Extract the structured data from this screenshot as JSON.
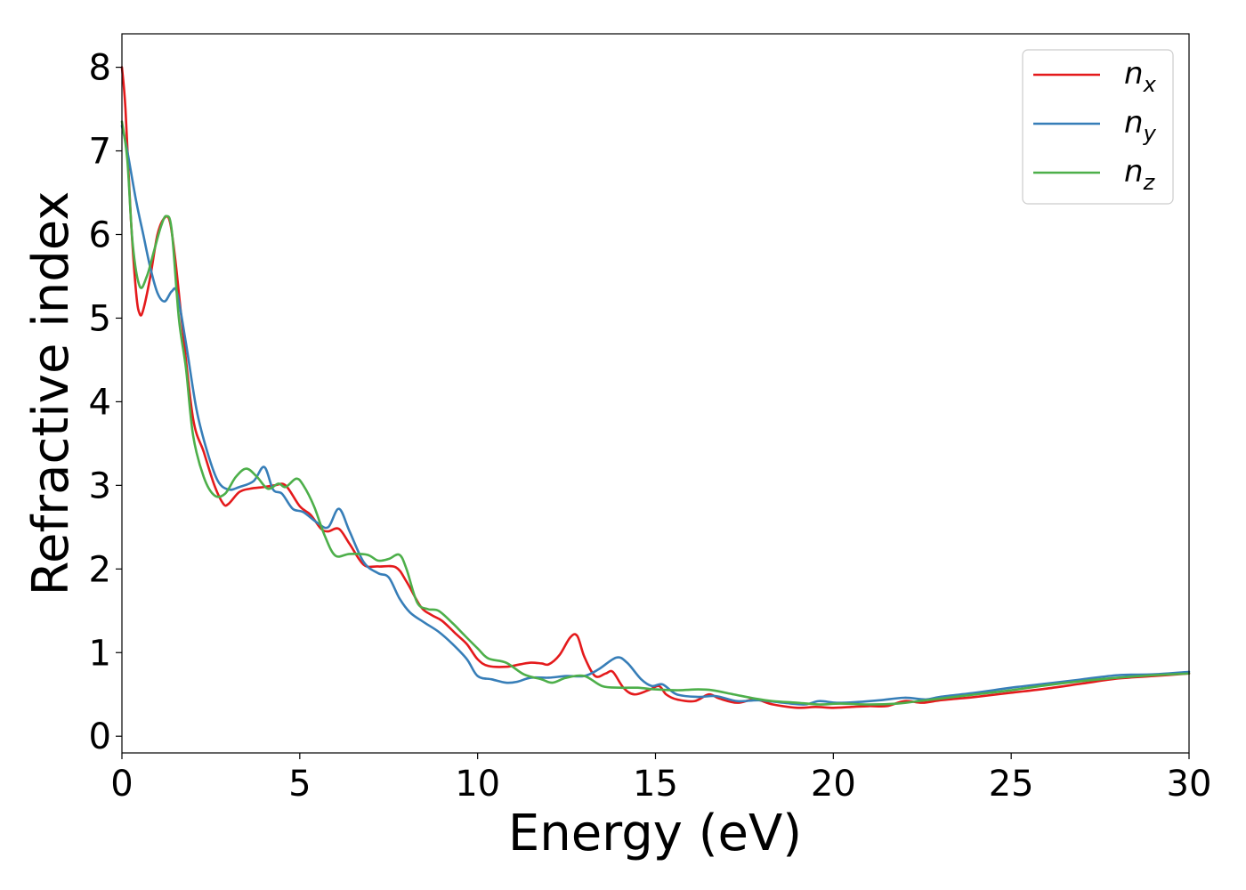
{
  "chart_data": {
    "type": "line",
    "xlabel": "Energy (eV)",
    "ylabel": "Refractive index",
    "xlim": [
      0,
      30
    ],
    "ylim": [
      -0.2,
      8.4
    ],
    "xticks": [
      0,
      5,
      10,
      15,
      20,
      25,
      30
    ],
    "yticks": [
      0,
      1,
      2,
      3,
      4,
      5,
      6,
      7,
      8
    ],
    "grid": false,
    "legend_position": "top-right",
    "series": [
      {
        "name": "n_x",
        "label_base": "n",
        "label_sub": "x",
        "color": "#e41a1c",
        "points": [
          [
            0,
            8.0
          ],
          [
            0.1,
            7.5
          ],
          [
            0.25,
            6.2
          ],
          [
            0.4,
            5.3
          ],
          [
            0.5,
            5.05
          ],
          [
            0.6,
            5.1
          ],
          [
            0.8,
            5.5
          ],
          [
            1.0,
            6.0
          ],
          [
            1.2,
            6.2
          ],
          [
            1.35,
            6.15
          ],
          [
            1.5,
            5.7
          ],
          [
            1.7,
            4.9
          ],
          [
            2.0,
            3.8
          ],
          [
            2.3,
            3.4
          ],
          [
            2.6,
            3.0
          ],
          [
            2.85,
            2.78
          ],
          [
            3.0,
            2.78
          ],
          [
            3.3,
            2.92
          ],
          [
            3.6,
            2.96
          ],
          [
            4.0,
            2.98
          ],
          [
            4.3,
            3.0
          ],
          [
            4.6,
            3.0
          ],
          [
            5.0,
            2.75
          ],
          [
            5.3,
            2.65
          ],
          [
            5.6,
            2.48
          ],
          [
            5.8,
            2.45
          ],
          [
            6.1,
            2.48
          ],
          [
            6.4,
            2.3
          ],
          [
            6.8,
            2.05
          ],
          [
            7.2,
            2.03
          ],
          [
            7.7,
            2.02
          ],
          [
            8.0,
            1.85
          ],
          [
            8.4,
            1.55
          ],
          [
            8.7,
            1.45
          ],
          [
            9.0,
            1.38
          ],
          [
            9.4,
            1.22
          ],
          [
            9.7,
            1.1
          ],
          [
            10.0,
            0.92
          ],
          [
            10.3,
            0.84
          ],
          [
            10.8,
            0.83
          ],
          [
            11.2,
            0.86
          ],
          [
            11.5,
            0.88
          ],
          [
            11.8,
            0.87
          ],
          [
            12.0,
            0.86
          ],
          [
            12.3,
            0.97
          ],
          [
            12.6,
            1.18
          ],
          [
            12.8,
            1.2
          ],
          [
            13.0,
            0.95
          ],
          [
            13.3,
            0.72
          ],
          [
            13.6,
            0.75
          ],
          [
            13.8,
            0.77
          ],
          [
            14.1,
            0.58
          ],
          [
            14.4,
            0.5
          ],
          [
            14.8,
            0.55
          ],
          [
            15.1,
            0.6
          ],
          [
            15.3,
            0.5
          ],
          [
            15.6,
            0.44
          ],
          [
            16.1,
            0.42
          ],
          [
            16.5,
            0.5
          ],
          [
            16.8,
            0.45
          ],
          [
            17.3,
            0.4
          ],
          [
            17.8,
            0.44
          ],
          [
            18.3,
            0.38
          ],
          [
            19.0,
            0.34
          ],
          [
            19.5,
            0.35
          ],
          [
            20.0,
            0.34
          ],
          [
            20.5,
            0.35
          ],
          [
            21.0,
            0.36
          ],
          [
            21.5,
            0.36
          ],
          [
            22.0,
            0.42
          ],
          [
            22.5,
            0.4
          ],
          [
            23.0,
            0.43
          ],
          [
            23.5,
            0.45
          ],
          [
            24.0,
            0.47
          ],
          [
            25.0,
            0.52
          ],
          [
            26.0,
            0.57
          ],
          [
            27.0,
            0.63
          ],
          [
            28.0,
            0.69
          ],
          [
            29.0,
            0.72
          ],
          [
            30.0,
            0.75
          ]
        ]
      },
      {
        "name": "n_y",
        "label_base": "n",
        "label_sub": "y",
        "color": "#377eb8",
        "points": [
          [
            0,
            7.3
          ],
          [
            0.15,
            7.0
          ],
          [
            0.4,
            6.4
          ],
          [
            0.6,
            6.0
          ],
          [
            0.8,
            5.6
          ],
          [
            1.0,
            5.3
          ],
          [
            1.2,
            5.2
          ],
          [
            1.4,
            5.32
          ],
          [
            1.55,
            5.3
          ],
          [
            1.8,
            4.7
          ],
          [
            2.1,
            3.9
          ],
          [
            2.4,
            3.4
          ],
          [
            2.7,
            3.05
          ],
          [
            3.0,
            2.95
          ],
          [
            3.3,
            2.98
          ],
          [
            3.7,
            3.05
          ],
          [
            4.0,
            3.22
          ],
          [
            4.25,
            2.95
          ],
          [
            4.5,
            2.9
          ],
          [
            4.8,
            2.72
          ],
          [
            5.1,
            2.68
          ],
          [
            5.5,
            2.55
          ],
          [
            5.8,
            2.5
          ],
          [
            6.1,
            2.72
          ],
          [
            6.4,
            2.45
          ],
          [
            6.8,
            2.08
          ],
          [
            7.2,
            1.95
          ],
          [
            7.5,
            1.9
          ],
          [
            7.8,
            1.65
          ],
          [
            8.1,
            1.48
          ],
          [
            8.5,
            1.36
          ],
          [
            8.9,
            1.25
          ],
          [
            9.3,
            1.1
          ],
          [
            9.7,
            0.92
          ],
          [
            10.0,
            0.72
          ],
          [
            10.4,
            0.68
          ],
          [
            10.8,
            0.64
          ],
          [
            11.1,
            0.65
          ],
          [
            11.5,
            0.7
          ],
          [
            12.0,
            0.7
          ],
          [
            12.5,
            0.72
          ],
          [
            13.0,
            0.72
          ],
          [
            13.4,
            0.8
          ],
          [
            13.9,
            0.94
          ],
          [
            14.2,
            0.88
          ],
          [
            14.6,
            0.68
          ],
          [
            14.9,
            0.6
          ],
          [
            15.2,
            0.62
          ],
          [
            15.6,
            0.5
          ],
          [
            16.2,
            0.47
          ],
          [
            16.7,
            0.48
          ],
          [
            17.3,
            0.42
          ],
          [
            17.9,
            0.43
          ],
          [
            18.6,
            0.4
          ],
          [
            19.2,
            0.38
          ],
          [
            19.6,
            0.42
          ],
          [
            20.1,
            0.4
          ],
          [
            20.7,
            0.41
          ],
          [
            21.3,
            0.43
          ],
          [
            22.0,
            0.46
          ],
          [
            22.6,
            0.44
          ],
          [
            23.0,
            0.47
          ],
          [
            24.0,
            0.52
          ],
          [
            25.0,
            0.58
          ],
          [
            26.0,
            0.63
          ],
          [
            27.0,
            0.68
          ],
          [
            28.0,
            0.73
          ],
          [
            29.0,
            0.74
          ],
          [
            30.0,
            0.77
          ]
        ]
      },
      {
        "name": "n_z",
        "label_base": "n",
        "label_sub": "z",
        "color": "#4daf4a",
        "points": [
          [
            0,
            7.35
          ],
          [
            0.15,
            6.9
          ],
          [
            0.3,
            5.9
          ],
          [
            0.5,
            5.38
          ],
          [
            0.7,
            5.5
          ],
          [
            0.9,
            5.8
          ],
          [
            1.1,
            6.1
          ],
          [
            1.25,
            6.22
          ],
          [
            1.4,
            6.05
          ],
          [
            1.6,
            5.0
          ],
          [
            1.8,
            4.4
          ],
          [
            2.0,
            3.6
          ],
          [
            2.3,
            3.1
          ],
          [
            2.6,
            2.88
          ],
          [
            2.9,
            2.9
          ],
          [
            3.2,
            3.1
          ],
          [
            3.5,
            3.2
          ],
          [
            3.8,
            3.1
          ],
          [
            4.1,
            2.96
          ],
          [
            4.4,
            3.02
          ],
          [
            4.6,
            2.98
          ],
          [
            4.9,
            3.08
          ],
          [
            5.1,
            3.0
          ],
          [
            5.4,
            2.75
          ],
          [
            5.7,
            2.4
          ],
          [
            6.0,
            2.16
          ],
          [
            6.4,
            2.18
          ],
          [
            6.9,
            2.17
          ],
          [
            7.2,
            2.1
          ],
          [
            7.5,
            2.12
          ],
          [
            7.8,
            2.17
          ],
          [
            8.0,
            2.0
          ],
          [
            8.3,
            1.6
          ],
          [
            8.6,
            1.52
          ],
          [
            8.9,
            1.5
          ],
          [
            9.3,
            1.35
          ],
          [
            9.6,
            1.22
          ],
          [
            10.0,
            1.05
          ],
          [
            10.3,
            0.93
          ],
          [
            10.8,
            0.88
          ],
          [
            11.3,
            0.74
          ],
          [
            11.8,
            0.68
          ],
          [
            12.1,
            0.64
          ],
          [
            12.5,
            0.7
          ],
          [
            13.0,
            0.72
          ],
          [
            13.5,
            0.6
          ],
          [
            14.0,
            0.58
          ],
          [
            14.5,
            0.58
          ],
          [
            15.0,
            0.56
          ],
          [
            15.6,
            0.55
          ],
          [
            16.2,
            0.56
          ],
          [
            16.6,
            0.55
          ],
          [
            17.2,
            0.5
          ],
          [
            17.8,
            0.45
          ],
          [
            18.3,
            0.42
          ],
          [
            19.0,
            0.4
          ],
          [
            19.6,
            0.38
          ],
          [
            20.2,
            0.39
          ],
          [
            21.0,
            0.38
          ],
          [
            21.8,
            0.39
          ],
          [
            22.4,
            0.42
          ],
          [
            23.0,
            0.45
          ],
          [
            24.0,
            0.5
          ],
          [
            25.0,
            0.55
          ],
          [
            26.0,
            0.61
          ],
          [
            27.0,
            0.66
          ],
          [
            28.0,
            0.7
          ],
          [
            29.0,
            0.73
          ],
          [
            30.0,
            0.75
          ]
        ]
      }
    ]
  }
}
